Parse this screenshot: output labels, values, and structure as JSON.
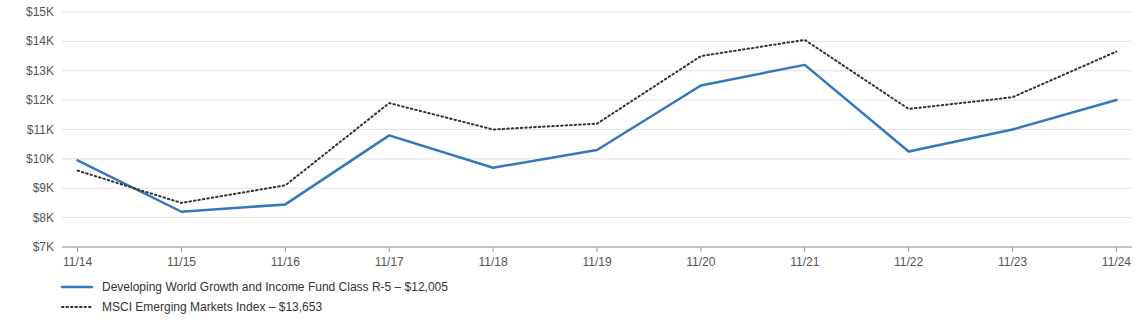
{
  "chart_data": {
    "type": "line",
    "categories": [
      "11/14",
      "11/15",
      "11/16",
      "11/17",
      "11/18",
      "11/19",
      "11/20",
      "11/21",
      "11/22",
      "11/23",
      "11/24"
    ],
    "series": [
      {
        "name": "Developing World Growth and Income Fund Class R-5 – $12,005",
        "color": "#3577BC",
        "line_style": "solid",
        "values": [
          9950,
          8200,
          8450,
          10800,
          9700,
          10300,
          12500,
          13200,
          10250,
          11000,
          12005
        ]
      },
      {
        "name": "MSCI Emerging Markets Index – $13,653",
        "color": "#333333",
        "line_style": "dotted",
        "values": [
          9600,
          8500,
          9100,
          11900,
          11000,
          11200,
          13500,
          14050,
          11700,
          12100,
          13653
        ]
      }
    ],
    "ylim": [
      7000,
      15000
    ],
    "yticks": [
      {
        "value": 7000,
        "label": "$7K"
      },
      {
        "value": 8000,
        "label": "$8K"
      },
      {
        "value": 9000,
        "label": "$9K"
      },
      {
        "value": 10000,
        "label": "$10K"
      },
      {
        "value": 11000,
        "label": "$11K"
      },
      {
        "value": 12000,
        "label": "$12K"
      },
      {
        "value": 13000,
        "label": "$13K"
      },
      {
        "value": 14000,
        "label": "$14K"
      },
      {
        "value": 15000,
        "label": "$15K"
      }
    ],
    "grid": true,
    "legend": "bottom"
  }
}
